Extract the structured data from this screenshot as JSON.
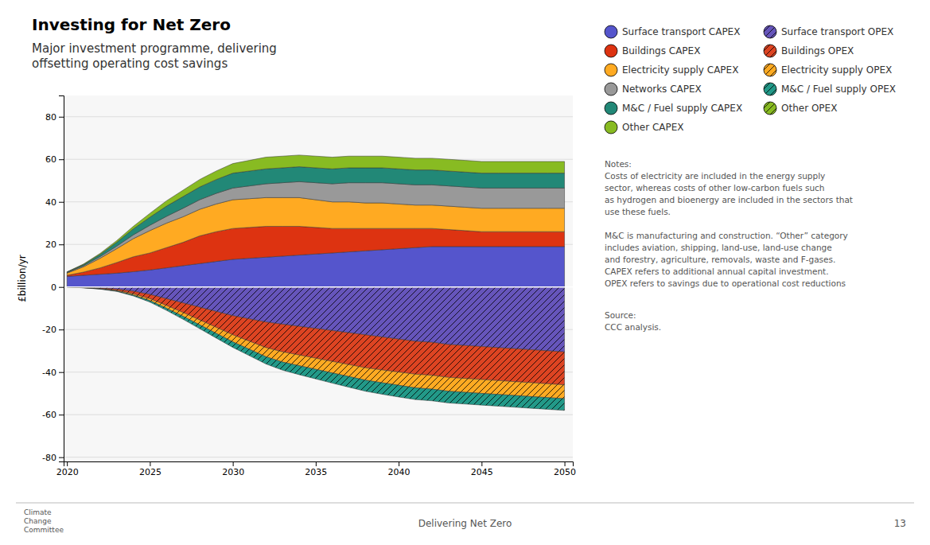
{
  "chart_data": {
    "type": "area",
    "stacked": true,
    "grid": true,
    "title": "Investing for Net Zero",
    "subtitle": "Major investment programme, delivering\noffsetting operating cost savings",
    "ylabel": "£billion/yr",
    "x": [
      2020,
      2021,
      2022,
      2023,
      2024,
      2025,
      2026,
      2027,
      2028,
      2029,
      2030,
      2031,
      2032,
      2033,
      2034,
      2035,
      2036,
      2037,
      2038,
      2039,
      2040,
      2041,
      2042,
      2043,
      2044,
      2045,
      2046,
      2047,
      2048,
      2049,
      2050
    ],
    "xlim": [
      2019.8,
      2050.5
    ],
    "xticks": [
      2020,
      2025,
      2030,
      2035,
      2040,
      2045,
      2050
    ],
    "ylim": [
      -82,
      90
    ],
    "yticks": [
      -80,
      -60,
      -40,
      -20,
      0,
      20,
      40,
      60,
      80
    ],
    "series": [
      {
        "name": "Surface transport CAPEX",
        "color": "#5555cc",
        "marker": "circle",
        "values": [
          5.0,
          5.5,
          6.0,
          6.5,
          7.2,
          8.0,
          9.0,
          10.0,
          11.0,
          12.0,
          13.0,
          13.5,
          14.0,
          14.5,
          15.0,
          15.5,
          16.0,
          16.5,
          17.0,
          17.5,
          18.0,
          18.5,
          19.0,
          19.0,
          19.0,
          19.0,
          19.0,
          19.0,
          19.0,
          19.0,
          19.0
        ]
      },
      {
        "name": "Buildings CAPEX",
        "color": "#dd3311",
        "marker": "circle",
        "values": [
          0.5,
          1.5,
          3.0,
          5.0,
          7.0,
          8.0,
          9.5,
          11.0,
          13.0,
          14.0,
          14.5,
          14.5,
          14.5,
          14.0,
          13.5,
          12.5,
          11.5,
          11.0,
          10.5,
          10.0,
          9.5,
          9.0,
          8.5,
          8.0,
          7.5,
          7.0,
          7.0,
          7.0,
          7.0,
          7.0,
          7.0
        ]
      },
      {
        "name": "Electricity supply CAPEX",
        "color": "#ffaa22",
        "marker": "circle",
        "values": [
          1.0,
          2.5,
          4.5,
          6.5,
          8.5,
          10.5,
          11.5,
          12.0,
          12.5,
          13.0,
          13.5,
          13.5,
          13.5,
          13.5,
          13.5,
          13.0,
          12.5,
          12.5,
          12.0,
          12.0,
          11.5,
          11.0,
          11.0,
          11.0,
          11.0,
          11.0,
          11.0,
          11.0,
          11.0,
          11.0,
          11.0
        ]
      },
      {
        "name": "Networks CAPEX",
        "color": "#999999",
        "marker": "circle",
        "values": [
          0.3,
          0.5,
          0.8,
          1.2,
          1.8,
          2.5,
          3.2,
          4.0,
          4.5,
          5.0,
          5.5,
          6.0,
          6.5,
          7.0,
          7.5,
          8.0,
          8.5,
          9.0,
          9.5,
          9.5,
          9.5,
          9.5,
          9.5,
          9.5,
          9.5,
          9.5,
          9.5,
          9.5,
          9.5,
          9.5,
          9.5
        ]
      },
      {
        "name": "M&C / Fuel supply CAPEX",
        "color": "#228877",
        "marker": "circle",
        "values": [
          0.2,
          0.5,
          1.0,
          1.8,
          2.8,
          3.8,
          4.8,
          5.5,
          6.0,
          6.5,
          7.0,
          7.0,
          7.0,
          7.0,
          7.0,
          7.0,
          7.0,
          7.0,
          7.0,
          7.0,
          7.0,
          7.0,
          7.0,
          7.0,
          7.0,
          7.0,
          7.0,
          7.0,
          7.0,
          7.0,
          7.0
        ]
      },
      {
        "name": "Other CAPEX",
        "color": "#88bb22",
        "marker": "circle",
        "values": [
          0.1,
          0.3,
          0.5,
          0.8,
          1.2,
          1.8,
          2.5,
          3.0,
          3.5,
          4.0,
          4.5,
          5.0,
          5.5,
          5.5,
          5.5,
          5.5,
          5.5,
          5.5,
          5.5,
          5.5,
          5.5,
          5.5,
          5.5,
          5.5,
          5.5,
          5.5,
          5.5,
          5.5,
          5.5,
          5.5,
          5.5
        ]
      },
      {
        "name": "Surface transport OPEX",
        "color": "#6655bb",
        "marker": "hatched-circle",
        "values": [
          0.0,
          -0.2,
          -0.5,
          -1.0,
          -2.0,
          -3.5,
          -5.5,
          -7.5,
          -9.5,
          -11.5,
          -13.5,
          -15.0,
          -16.5,
          -17.5,
          -18.5,
          -19.5,
          -20.5,
          -21.5,
          -22.5,
          -23.5,
          -24.5,
          -25.5,
          -26.0,
          -27.0,
          -27.5,
          -28.0,
          -28.5,
          -29.0,
          -29.5,
          -30.0,
          -30.5
        ]
      },
      {
        "name": "Buildings OPEX",
        "color": "#dd4422",
        "marker": "hatched-circle",
        "values": [
          0.0,
          -0.1,
          -0.3,
          -0.6,
          -1.2,
          -2.0,
          -3.2,
          -4.5,
          -6.0,
          -7.5,
          -9.0,
          -10.5,
          -12.0,
          -13.0,
          -13.5,
          -14.0,
          -14.5,
          -15.0,
          -15.5,
          -15.5,
          -15.5,
          -15.5,
          -15.5,
          -15.5,
          -15.5,
          -15.5,
          -15.5,
          -15.5,
          -15.5,
          -15.5,
          -15.5
        ]
      },
      {
        "name": "Electricity supply OPEX",
        "color": "#ffaa22",
        "marker": "hatched-circle",
        "values": [
          0.0,
          -0.05,
          -0.1,
          -0.3,
          -0.6,
          -0.9,
          -1.3,
          -1.8,
          -2.3,
          -2.8,
          -3.3,
          -3.8,
          -4.3,
          -4.8,
          -5.0,
          -5.2,
          -5.4,
          -5.6,
          -5.8,
          -6.0,
          -6.2,
          -6.4,
          -6.5,
          -6.5,
          -6.5,
          -6.5,
          -6.5,
          -6.5,
          -6.5,
          -6.5,
          -6.5
        ]
      },
      {
        "name": "M&C / Fuel supply OPEX",
        "color": "#229988",
        "marker": "hatched-circle",
        "values": [
          0.0,
          -0.05,
          -0.1,
          -0.2,
          -0.4,
          -0.7,
          -1.0,
          -1.4,
          -1.8,
          -2.2,
          -2.6,
          -3.0,
          -3.4,
          -3.8,
          -4.2,
          -4.5,
          -4.8,
          -5.0,
          -5.2,
          -5.4,
          -5.5,
          -5.5,
          -5.5,
          -5.5,
          -5.5,
          -5.5,
          -5.5,
          -5.5,
          -5.5,
          -5.5,
          -5.5
        ]
      },
      {
        "name": "Other OPEX",
        "color": "#88bb22",
        "marker": "hatched-circle",
        "values": [
          null,
          null,
          null,
          null,
          null,
          null,
          null,
          null,
          null,
          null,
          null,
          null,
          null,
          null,
          null,
          null,
          null,
          null,
          null,
          null,
          null,
          null,
          null,
          null,
          null,
          null,
          null,
          null,
          null,
          null,
          null
        ]
      }
    ],
    "annotations": [
      "Notes:\nCosts of electricity are included in the energy supply\nsector, whereas costs of other low-carbon fuels such\nas hydrogen and bioenergy are included in the sectors that\nuse these fuels.\n\nM&C is manufacturing and construction. “Other” category\nincludes aviation, shipping, land-use, land-use change\nand forestry, agriculture, removals, waste and F-gases.\nCAPEX refers to additional annual capital investment.\nOPEX refers to savings due to operational cost reductions",
      "Source:\nCCC analysis.",
      "Delivering Net Zero",
      "13",
      "Climate\nChange\nCommittee"
    ]
  }
}
